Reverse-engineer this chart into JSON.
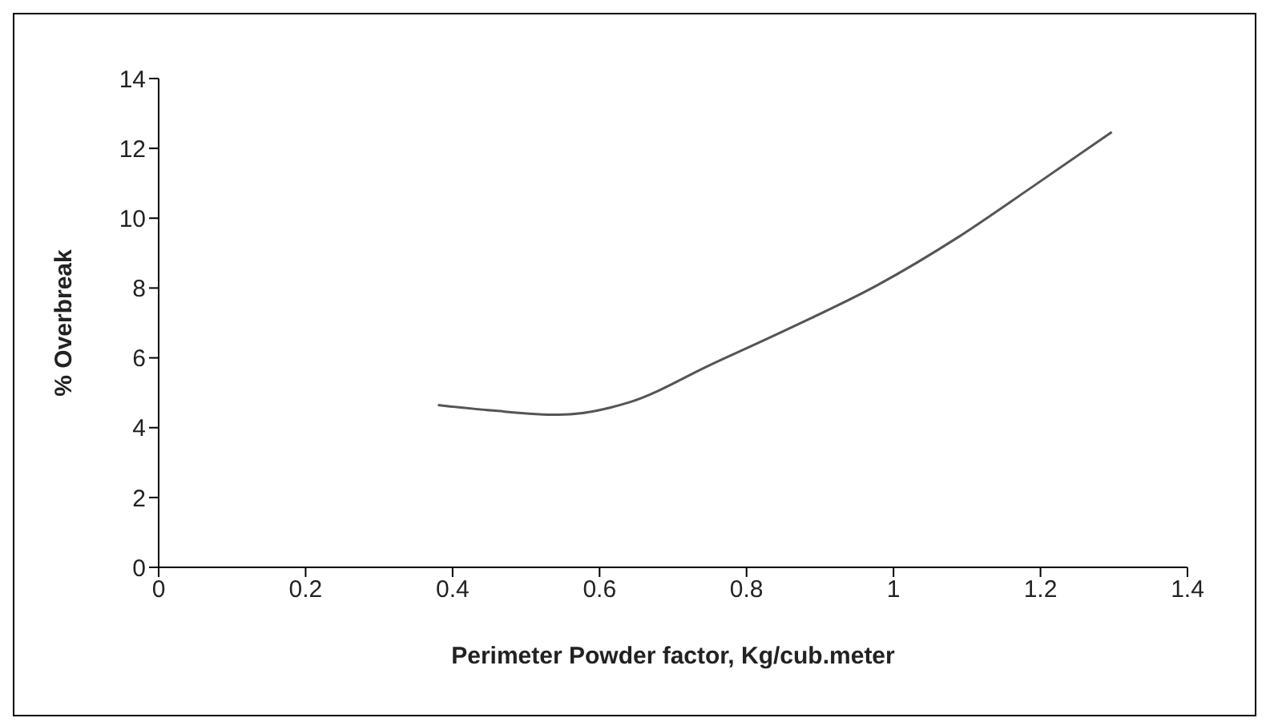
{
  "chart_data": {
    "type": "line",
    "xlabel": "Perimeter Powder factor, Kg/cub.meter",
    "ylabel": "% Overbreak",
    "series": [
      {
        "color": "#555555",
        "x": [
          0.38,
          0.455,
          0.544,
          0.641,
          0.753,
          0.865,
          0.977,
          1.089,
          1.187,
          1.297
        ],
        "values": [
          4.65,
          4.49,
          4.37,
          4.73,
          5.82,
          6.91,
          8.07,
          9.47,
          10.87,
          12.47
        ]
      }
    ],
    "xlim": [
      0,
      1.4
    ],
    "xticks": [
      0,
      0.2,
      0.4,
      0.6,
      0.8,
      1,
      1.2,
      1.4
    ],
    "ylim": [
      0,
      14
    ],
    "yticks": [
      0,
      2,
      4,
      6,
      8,
      10,
      12,
      14
    ],
    "grid": false,
    "legend": false,
    "marker": "none",
    "line_style": "solid"
  }
}
